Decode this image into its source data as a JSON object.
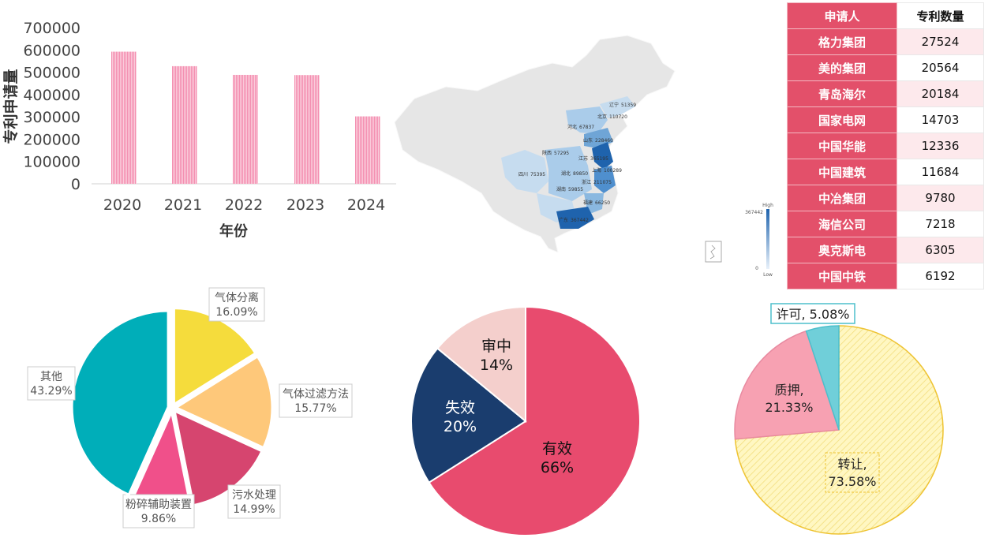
{
  "bar_chart": {
    "chart_data": {
      "type": "bar",
      "categories": [
        "2020",
        "2021",
        "2022",
        "2023",
        "2024"
      ],
      "values": [
        592000,
        527000,
        488000,
        487000,
        302000
      ],
      "xlabel": "年份",
      "ylabel": "专利申请量",
      "ylim": [
        0,
        700000
      ],
      "yticks": [
        "0",
        "100000",
        "200000",
        "300000",
        "400000",
        "500000",
        "600000",
        "700000"
      ],
      "color": "#f48fb1"
    }
  },
  "map_chart": {
    "chart_data": {
      "type": "heatmap",
      "labels": [
        {
          "name": "辽宁",
          "value": 51359
        },
        {
          "name": "北京",
          "value": 110720
        },
        {
          "name": "河北",
          "value": 67837
        },
        {
          "name": "山东",
          "value": 228460
        },
        {
          "name": "陕西",
          "value": 57295
        },
        {
          "name": "江苏",
          "value": 365195
        },
        {
          "name": "四川",
          "value": 75395
        },
        {
          "name": "湖北",
          "value": 89850
        },
        {
          "name": "上海",
          "value": 100289
        },
        {
          "name": "浙江",
          "value": 211075
        },
        {
          "name": "湖南",
          "value": 59855
        },
        {
          "name": "福建",
          "value": 66250
        },
        {
          "name": "广东",
          "value": 367442
        }
      ],
      "legend": {
        "max": "367442",
        "min": "0",
        "high_label": "High",
        "low_label": "Low"
      }
    }
  },
  "table": {
    "headers": [
      "申请人",
      "专利数量"
    ],
    "rows": [
      [
        "格力集团",
        "27524"
      ],
      [
        "美的集团",
        "20564"
      ],
      [
        "青岛海尔",
        "20184"
      ],
      [
        "国家电网",
        "14703"
      ],
      [
        "中国华能",
        "12336"
      ],
      [
        "中国建筑",
        "11684"
      ],
      [
        "中冶集团",
        "9780"
      ],
      [
        "海信公司",
        "7218"
      ],
      [
        "奥克斯电",
        "6305"
      ],
      [
        "中国中铁",
        "6192"
      ]
    ]
  },
  "pie1": {
    "chart_data": {
      "type": "pie",
      "slices": [
        {
          "label": "气体分离",
          "pct": "16.09%",
          "value": 16.09,
          "color": "#f5dc3c"
        },
        {
          "label": "气体过滤方法",
          "pct": "15.77%",
          "value": 15.77,
          "color": "#fec87a"
        },
        {
          "label": "污水处理",
          "pct": "14.99%",
          "value": 14.99,
          "color": "#d6456f"
        },
        {
          "label": "粉碎辅助装置",
          "pct": "9.86%",
          "value": 9.86,
          "color": "#f0508a"
        },
        {
          "label": "其他",
          "pct": "43.29%",
          "value": 43.29,
          "color": "#00aeb9"
        }
      ]
    }
  },
  "pie2": {
    "chart_data": {
      "type": "pie",
      "slices": [
        {
          "label": "有效",
          "pct": "66%",
          "value": 66,
          "color": "#e84b6e"
        },
        {
          "label": "失效",
          "pct": "20%",
          "value": 20,
          "color": "#1a3d6e"
        },
        {
          "label": "审中",
          "pct": "14%",
          "value": 14,
          "color": "#f4cfcc"
        }
      ]
    }
  },
  "pie3": {
    "chart_data": {
      "type": "pie",
      "slices": [
        {
          "label": "转让,",
          "pct": "73.58%",
          "value": 73.58,
          "color": "#fff4b0"
        },
        {
          "label": "质押,",
          "pct": "21.33%",
          "value": 21.33,
          "color": "#f7a1b2"
        },
        {
          "label": "许可, 5.08%",
          "pct": "",
          "value": 5.08,
          "color": "#70cfd9"
        }
      ]
    }
  }
}
